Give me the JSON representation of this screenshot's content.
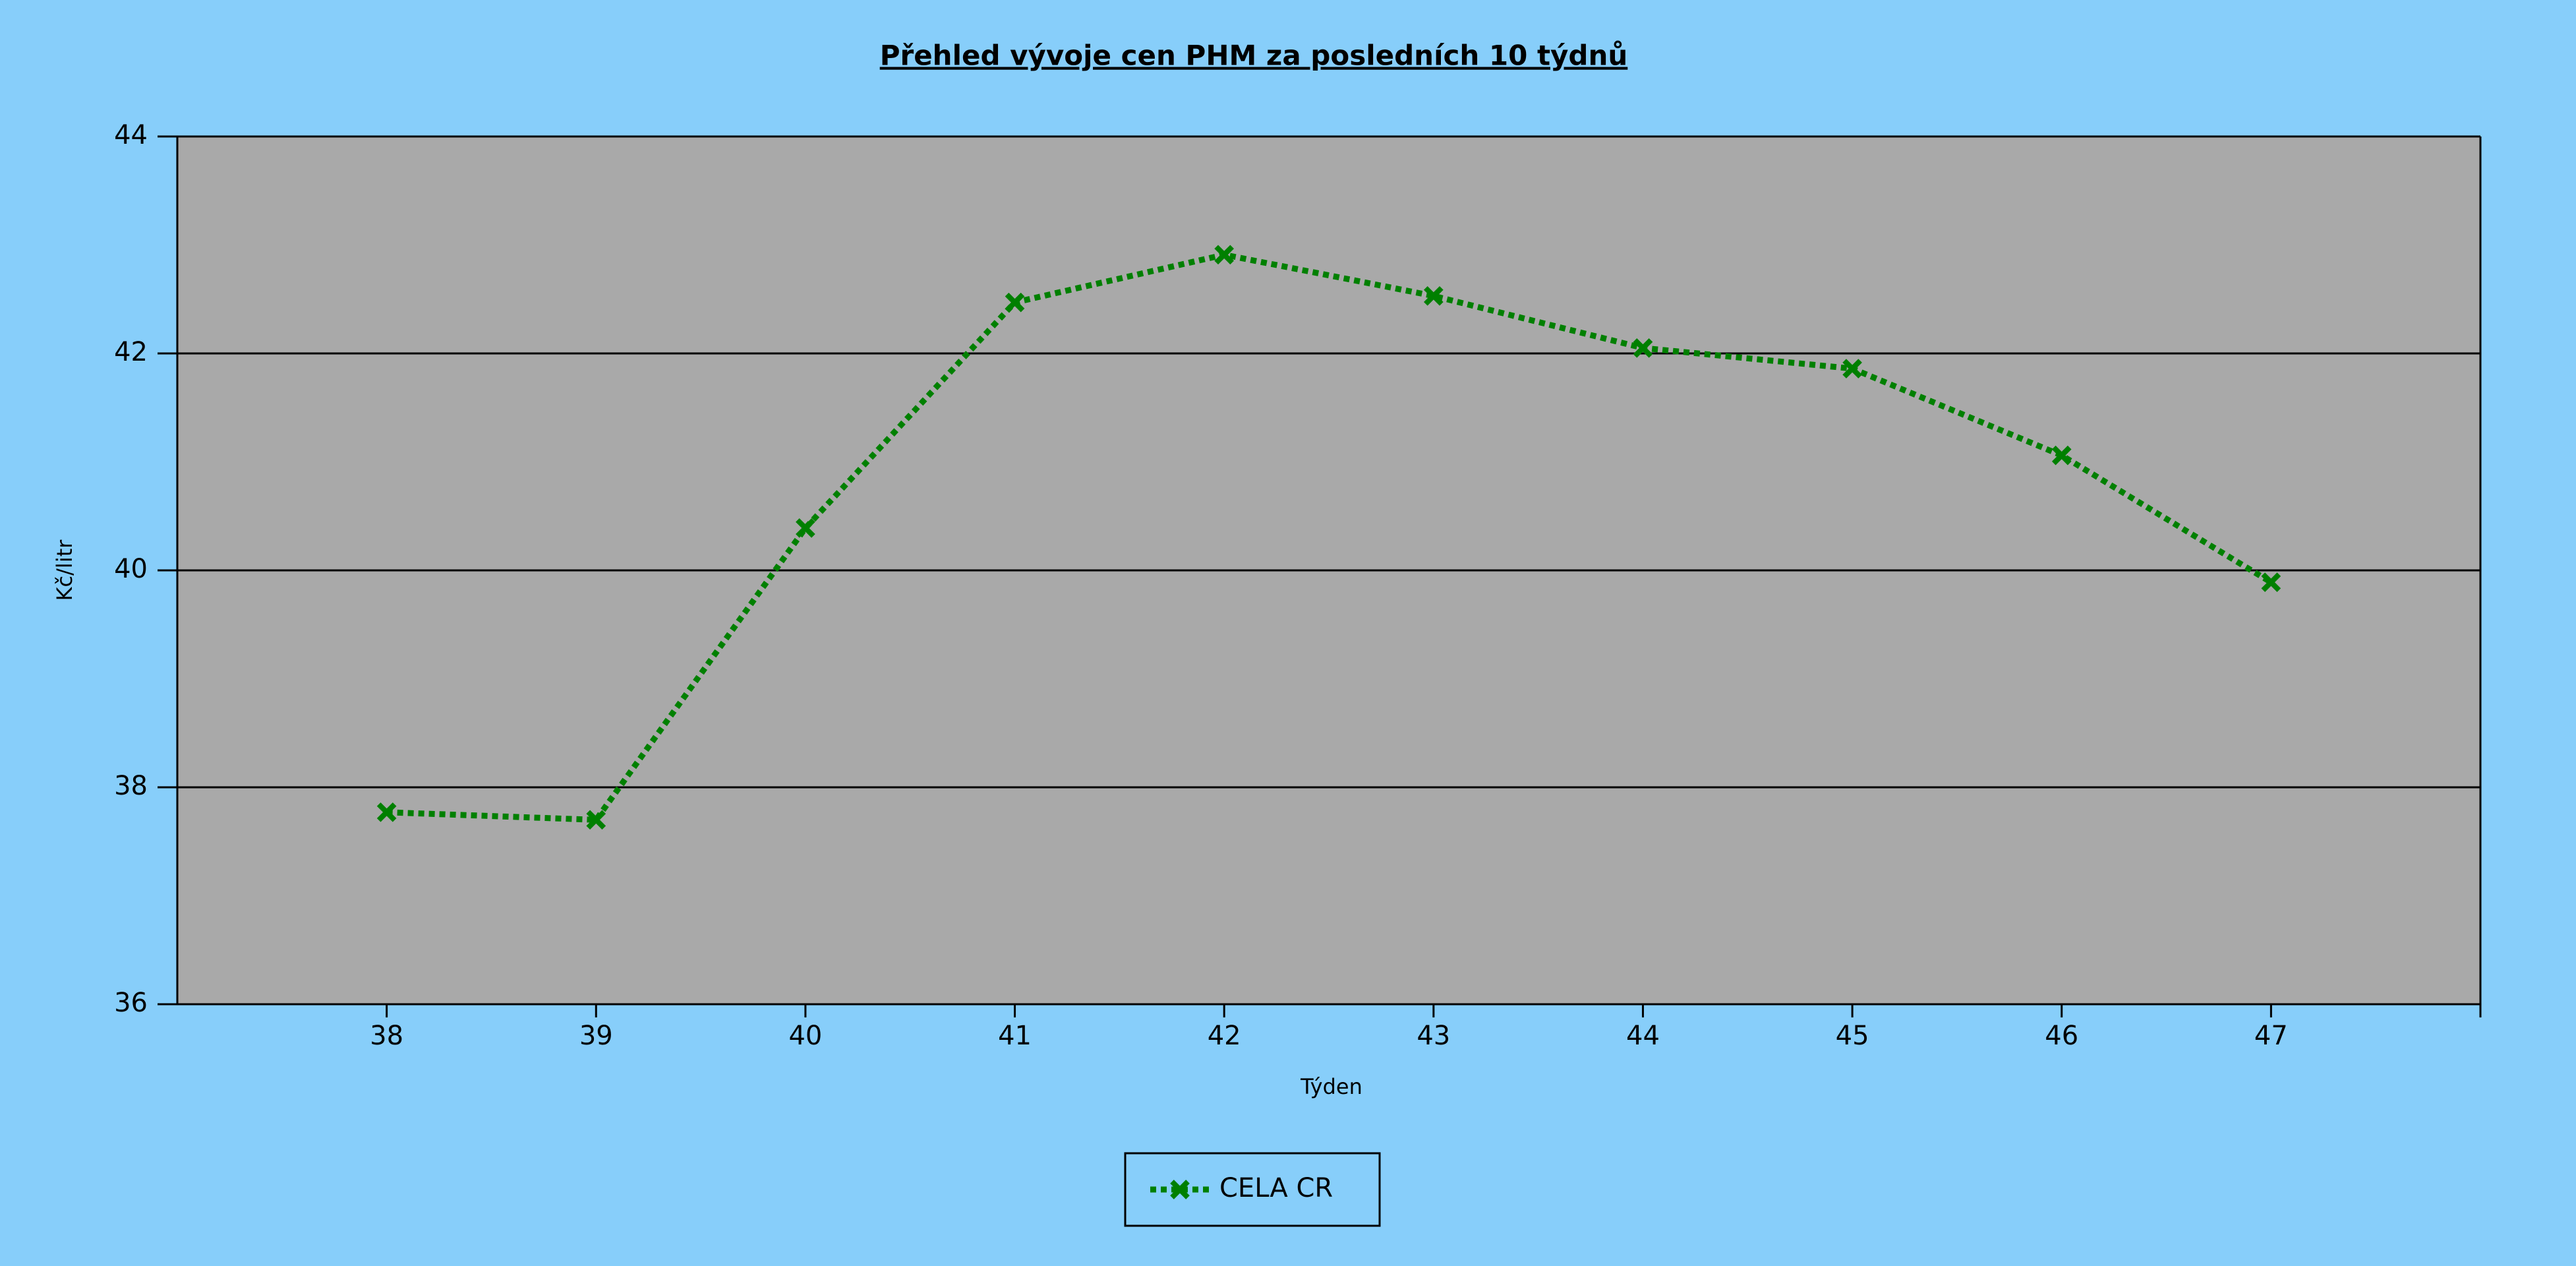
{
  "chart_data": {
    "type": "line",
    "title": "Přehled vývoje cen PHM za posledních 10 týdnů",
    "x_label": "Týden",
    "y_label": "Kč/litr",
    "x": [
      38,
      39,
      40,
      41,
      42,
      43,
      44,
      45,
      46,
      47
    ],
    "series": [
      {
        "name": "CELA CR",
        "color": "#008000",
        "values": [
          37.77,
          37.7,
          40.39,
          42.47,
          42.91,
          42.53,
          42.05,
          41.86,
          41.06,
          39.89
        ]
      }
    ],
    "xlim": [
      37,
      48
    ],
    "xticks": [
      38,
      39,
      40,
      41,
      42,
      43,
      44,
      45,
      46,
      47
    ],
    "ylim": [
      36,
      44
    ],
    "yticks": [
      36,
      38,
      40,
      42,
      44
    ],
    "grid": true,
    "legend": "bottom"
  }
}
